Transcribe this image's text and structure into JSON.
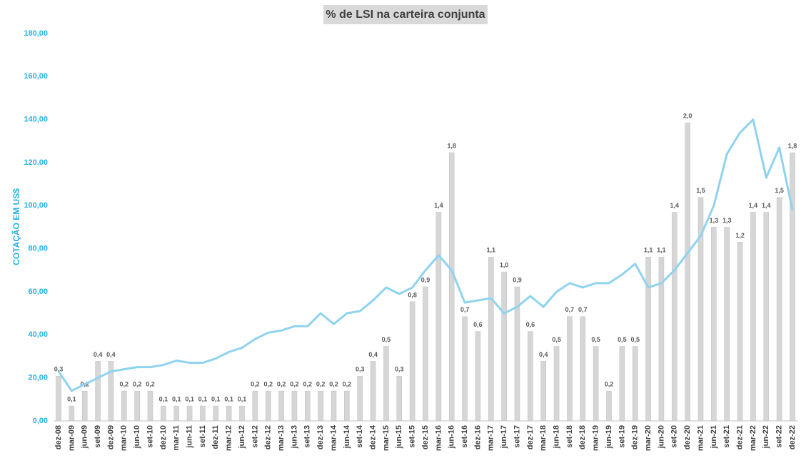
{
  "chart_data": {
    "type": "bar-line",
    "title": "% de LSI na carteira conjunta",
    "y_label": "COTAÇÃO EM US$",
    "categories": [
      "dez-08",
      "mar-09",
      "jun-09",
      "set-09",
      "dez-09",
      "mar-10",
      "jun-10",
      "set-10",
      "dez-10",
      "mar-11",
      "jun-11",
      "set-11",
      "dez-11",
      "mar-12",
      "jun-12",
      "set-12",
      "dez-12",
      "mar-13",
      "jun-13",
      "set-13",
      "dez-13",
      "mar-14",
      "jun-14",
      "set-14",
      "dez-14",
      "mar-15",
      "jun-15",
      "set-15",
      "dez-15",
      "mar-16",
      "jun-16",
      "set-16",
      "dez-16",
      "mar-17",
      "jun-17",
      "set-17",
      "dez-17",
      "mar-18",
      "jun-18",
      "set-18",
      "dez-18",
      "mar-19",
      "jun-19",
      "set-19",
      "dez-19",
      "mar-20",
      "jun-20",
      "set-20",
      "dez-20",
      "mar-21",
      "jun-21",
      "set-21",
      "dez-21",
      "mar-22",
      "jun-22",
      "set-22",
      "dez-22"
    ],
    "series": [
      {
        "type": "bar",
        "axis": "y2",
        "color": "#d6d6d6",
        "values": [
          0.3,
          0.1,
          0.2,
          0.4,
          0.4,
          0.2,
          0.2,
          0.2,
          0.1,
          0.1,
          0.1,
          0.1,
          0.1,
          0.1,
          0.1,
          0.2,
          0.2,
          0.2,
          0.2,
          0.2,
          0.2,
          0.2,
          0.2,
          0.3,
          0.4,
          0.5,
          0.3,
          0.8,
          0.9,
          1.4,
          1.8,
          0.7,
          0.6,
          1.1,
          1.0,
          0.9,
          0.6,
          0.4,
          0.5,
          0.7,
          0.7,
          0.5,
          0.2,
          0.5,
          0.5,
          1.1,
          1.1,
          1.4,
          2.0,
          1.5,
          1.3,
          1.3,
          1.2,
          1.4,
          1.4,
          1.5,
          1.8
        ],
        "value_labels": [
          "0,3",
          "0,1",
          "0,2",
          "0,4",
          "0,4",
          "0,2",
          "0,2",
          "0,2",
          "0,1",
          "0,1",
          "0,1",
          "0,1",
          "0,1",
          "0,1",
          "0,1",
          "0,2",
          "0,2",
          "0,2",
          "0,2",
          "0,2",
          "0,2",
          "0,2",
          "0,2",
          "0,3",
          "0,4",
          "0,5",
          "0,3",
          "0,8",
          "0,9",
          "1,4",
          "1,8",
          "0,7",
          "0,6",
          "1,1",
          "1,0",
          "0,9",
          "0,6",
          "0,4",
          "0,5",
          "0,7",
          "0,7",
          "0,5",
          "0,2",
          "0,5",
          "0,5",
          "1,1",
          "1,1",
          "1,4",
          "2,0",
          "1,5",
          "1,3",
          "1,3",
          "1,2",
          "1,4",
          "1,4",
          "1,5",
          "1,8"
        ]
      },
      {
        "type": "line",
        "color": "#8fd3f0",
        "values": [
          23,
          14,
          17,
          20,
          23,
          24,
          25,
          25,
          26,
          28,
          27,
          27,
          29,
          32,
          34,
          38,
          41,
          42,
          44,
          44,
          50,
          45,
          50,
          51,
          56,
          62,
          59,
          62,
          70,
          77,
          70,
          55,
          56,
          57,
          50,
          53,
          58,
          53,
          60,
          64,
          62,
          64,
          64,
          68,
          73,
          62,
          64,
          70,
          78,
          86,
          100,
          124,
          134,
          140,
          113,
          127,
          98
        ]
      }
    ],
    "ylim": [
      0,
      180
    ],
    "yticks": [
      {
        "value": 0,
        "label": "0,00"
      },
      {
        "value": 20,
        "label": "20,00"
      },
      {
        "value": 40,
        "label": "40,00"
      },
      {
        "value": 60,
        "label": "60,00"
      },
      {
        "value": 80,
        "label": "80,00"
      },
      {
        "value": 100,
        "label": "100,00"
      },
      {
        "value": 120,
        "label": "120,00"
      },
      {
        "value": 140,
        "label": "140,00"
      },
      {
        "value": 160,
        "label": "160,00"
      },
      {
        "value": 180,
        "label": "180,00"
      }
    ],
    "y2lim": [
      0,
      2.6
    ],
    "axis_color": "#29b0e3"
  }
}
